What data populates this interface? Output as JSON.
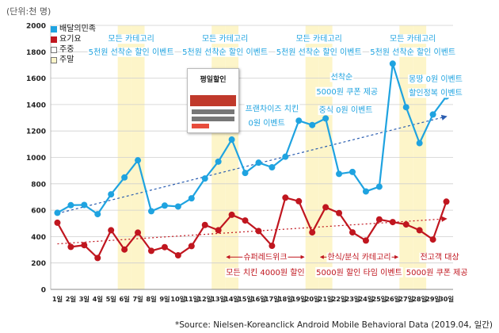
{
  "unit_label": "(단위:천 명)",
  "source": "*Source: Nielsen-Koreanclick Android Mobile Behavioral Data (2019.04,  일간)",
  "legend": [
    {
      "label": "배달의민족",
      "type": "series",
      "color": "#1fa3e0"
    },
    {
      "label": "요기요",
      "type": "series",
      "color": "#c0161f"
    },
    {
      "label": "주중",
      "type": "shade",
      "color": "#ffffff"
    },
    {
      "label": "주말",
      "type": "shade",
      "color": "#fdf5c9"
    }
  ],
  "promo_card": {
    "title": "평일할인",
    "icon": "promo-screenshot-icon"
  },
  "colors": {
    "baemin": "#1fa3e0",
    "yogiyo": "#c0161f",
    "weekend": "#fdf5c9",
    "grid": "#cfcfcf",
    "arrow": "#1fa3e0",
    "red_arrow": "#c0161f"
  },
  "chart_data": {
    "type": "line",
    "title": "",
    "xlabel": "",
    "ylabel": "(단위:천 명)",
    "ylim": [
      0,
      2000
    ],
    "yticks": [
      0,
      200,
      400,
      600,
      800,
      1000,
      1200,
      1400,
      1600,
      1800,
      2000
    ],
    "grid": true,
    "legend_position": "top-left",
    "categories": [
      "1일",
      "2일",
      "3일",
      "4일",
      "5일",
      "6일",
      "7일",
      "8일",
      "9일",
      "10일",
      "11일",
      "12일",
      "13일",
      "14일",
      "15일",
      "16일",
      "17일",
      "18일",
      "19일",
      "20일",
      "21일",
      "22일",
      "23일",
      "24일",
      "25일",
      "26일",
      "27일",
      "28일",
      "29일",
      "30일"
    ],
    "weekend_days": [
      6,
      7,
      13,
      14,
      20,
      21,
      27,
      28
    ],
    "series": [
      {
        "name": "배달의민족",
        "color": "#1fa3e0",
        "values": [
          580,
          638,
          640,
          570,
          720,
          848,
          978,
          592,
          635,
          628,
          690,
          840,
          968,
          1135,
          882,
          960,
          925,
          1005,
          1278,
          1245,
          1295,
          875,
          890,
          742,
          778,
          1710,
          1380,
          1108,
          1325,
          1462
        ],
        "trend": [
          575,
          1310
        ]
      },
      {
        "name": "요기요",
        "color": "#c0161f",
        "values": [
          505,
          322,
          335,
          238,
          448,
          302,
          430,
          292,
          320,
          258,
          328,
          488,
          448,
          565,
          522,
          442,
          330,
          695,
          668,
          432,
          622,
          578,
          432,
          370,
          530,
          510,
          492,
          448,
          378,
          665
        ],
        "trend": [
          345,
          535
        ]
      }
    ],
    "annotations": [
      {
        "text": "모든 카테고리",
        "x_from": 6,
        "x_to": 7,
        "y": 1900,
        "color": "#1fa3e0",
        "arrow": true
      },
      {
        "text": "5천원 선착순 할인 이벤트",
        "x": 6.5,
        "y": 1800,
        "color": "#1fa3e0"
      },
      {
        "text": "모든 카테고리",
        "x_from": 13,
        "x_to": 14,
        "y": 1900,
        "color": "#1fa3e0",
        "arrow": true
      },
      {
        "text": "5천원 선착순 할인 이벤트",
        "x": 13.5,
        "y": 1800,
        "color": "#1fa3e0"
      },
      {
        "text": "모든 카테고리",
        "x_from": 20,
        "x_to": 21,
        "y": 1900,
        "color": "#1fa3e0",
        "arrow": true
      },
      {
        "text": "5천원 선착순 할인 이벤트",
        "x": 20.5,
        "y": 1800,
        "color": "#1fa3e0"
      },
      {
        "text": "모든 카테고리",
        "x_from": 27,
        "x_to": 28,
        "y": 1900,
        "color": "#1fa3e0",
        "arrow": true
      },
      {
        "text": "5천원 선착순 할인 이벤트",
        "x": 27.5,
        "y": 1800,
        "color": "#1fa3e0"
      },
      {
        "text": "프랜차이즈 치킨",
        "x": 17,
        "y": 1370,
        "color": "#1fa3e0"
      },
      {
        "text": "0원 이벤트",
        "x": 16.6,
        "y": 1260,
        "color": "#1fa3e0"
      },
      {
        "text": "선착순",
        "x": 22.2,
        "y": 1610,
        "color": "#1fa3e0"
      },
      {
        "text": "5000원 쿠폰 제공",
        "x": 22.6,
        "y": 1500,
        "color": "#1fa3e0"
      },
      {
        "text": "중식 0원 이벤트",
        "x_from": 22,
        "x_to": 23,
        "y": 1360,
        "color": "#1fa3e0",
        "arrow": true
      },
      {
        "text": "몽땅 0원 이벤트",
        "x": 29.2,
        "y": 1595,
        "color": "#1fa3e0"
      },
      {
        "text": "할인정복 이벤트",
        "x": 29.2,
        "y": 1490,
        "color": "#1fa3e0"
      },
      {
        "text": "슈퍼레드위크",
        "x_from": 14,
        "x_to": 19,
        "y": 245,
        "color": "#c0161f",
        "arrow": true
      },
      {
        "text": "모든 치킨 4000원 할인",
        "x": 16.5,
        "y": 130,
        "color": "#c0161f"
      },
      {
        "text": "한식/분식 카테고리",
        "x_from": 21,
        "x_to": 26,
        "y": 245,
        "color": "#c0161f",
        "arrow": true
      },
      {
        "text": "5000원 할인 타임 이벤트",
        "x": 23.5,
        "y": 130,
        "color": "#c0161f"
      },
      {
        "text": "전고객 대상",
        "x_from": 29,
        "x_to": 30,
        "y": 245,
        "color": "#c0161f",
        "arrow": true
      },
      {
        "text": "5000원 쿠폰 제공",
        "x": 29.3,
        "y": 130,
        "color": "#c0161f"
      }
    ]
  }
}
